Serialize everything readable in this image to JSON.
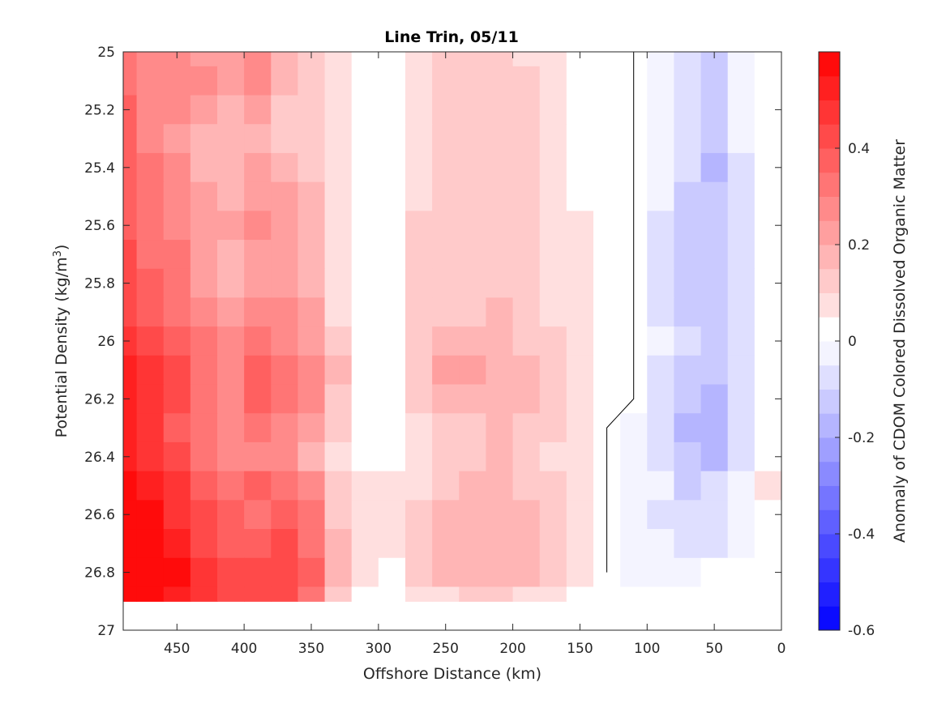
{
  "chart_data": {
    "type": "heatmap",
    "title": "Line Trin, 05/11",
    "xlabel": "Offshore Distance (km)",
    "ylabel": "Potential Density (kg/m³)",
    "ylabel_parts": {
      "main": "Potential Density (kg/m",
      "sup": "3",
      "close": ")"
    },
    "colorbar_label": "Anomaly of CDOM Colored Dissolved Organic Matter",
    "xlim": [
      490,
      0
    ],
    "ylim": [
      25,
      27
    ],
    "x_reversed": true,
    "y_reversed": true,
    "x_ticks": [
      450,
      400,
      350,
      300,
      250,
      200,
      150,
      100,
      50,
      0
    ],
    "x_tick_labels": [
      "450",
      "400",
      "350",
      "300",
      "250",
      "200",
      "150",
      "100",
      "50",
      "0"
    ],
    "y_ticks": [
      25,
      25.2,
      25.4,
      25.6,
      25.8,
      26,
      26.2,
      26.4,
      26.6,
      26.8,
      27
    ],
    "y_tick_labels": [
      "25",
      "25.2",
      "25.4",
      "25.6",
      "25.8",
      "26",
      "26.2",
      "26.4",
      "26.6",
      "26.8",
      "27"
    ],
    "colorbar": {
      "range": [
        -0.6,
        0.6
      ],
      "levels": 24,
      "ticks": [
        -0.6,
        -0.4,
        -0.2,
        0,
        0.2,
        0.4
      ],
      "tick_labels": [
        "-0.6",
        "-0.4",
        "-0.2",
        "0",
        "0.2",
        "0.4"
      ],
      "positive_color": "#ff0000",
      "negative_color": "#0000ff",
      "zero_color": "#ffffff"
    },
    "data_y_extent": [
      25,
      26.9
    ],
    "x": [
      490,
      470,
      450,
      430,
      410,
      390,
      370,
      350,
      330,
      310,
      290,
      270,
      250,
      230,
      210,
      190,
      170,
      150,
      130,
      110,
      90,
      70,
      50,
      30,
      10
    ],
    "y": [
      25.0,
      25.1,
      25.2,
      25.3,
      25.4,
      25.5,
      25.6,
      25.7,
      25.8,
      25.9,
      26.0,
      26.1,
      26.2,
      26.3,
      26.4,
      26.5,
      26.6,
      26.7,
      26.8,
      26.9
    ],
    "z": [
      [
        0.3,
        0.25,
        0.27,
        0.24,
        0.22,
        0.26,
        0.15,
        0.1,
        0.06,
        0.0,
        0.0,
        0.05,
        0.1,
        0.11,
        0.11,
        0.09,
        0.07,
        0.03,
        0.0,
        0.0,
        -0.03,
        -0.08,
        -0.12,
        -0.04,
        0.0
      ],
      [
        0.33,
        0.26,
        0.28,
        0.25,
        0.21,
        0.25,
        0.15,
        0.1,
        0.06,
        0.0,
        0.0,
        0.06,
        0.11,
        0.11,
        0.12,
        0.1,
        0.07,
        0.04,
        0.0,
        0.0,
        -0.04,
        -0.09,
        -0.13,
        -0.05,
        0.0
      ],
      [
        0.35,
        0.27,
        0.26,
        0.22,
        0.18,
        0.22,
        0.14,
        0.1,
        0.06,
        0.0,
        0.0,
        0.07,
        0.12,
        0.12,
        0.12,
        0.1,
        0.08,
        0.04,
        0.0,
        0.0,
        -0.04,
        -0.09,
        -0.14,
        -0.05,
        0.0
      ],
      [
        0.36,
        0.29,
        0.24,
        0.17,
        0.15,
        0.19,
        0.12,
        0.1,
        0.06,
        0.0,
        0.0,
        0.08,
        0.13,
        0.12,
        0.12,
        0.11,
        0.08,
        0.04,
        0.0,
        0.0,
        -0.05,
        -0.1,
        -0.15,
        -0.05,
        0.0
      ],
      [
        0.37,
        0.31,
        0.26,
        0.18,
        0.16,
        0.2,
        0.17,
        0.12,
        0.06,
        0.0,
        0.0,
        0.09,
        0.13,
        0.13,
        0.13,
        0.11,
        0.08,
        0.04,
        0.0,
        0.0,
        -0.05,
        -0.1,
        -0.16,
        -0.06,
        0.0
      ],
      [
        0.37,
        0.32,
        0.28,
        0.22,
        0.19,
        0.24,
        0.22,
        0.15,
        0.07,
        0.0,
        0.0,
        0.09,
        0.14,
        0.13,
        0.14,
        0.11,
        0.08,
        0.04,
        0.0,
        0.0,
        -0.05,
        -0.11,
        -0.15,
        -0.06,
        0.0
      ],
      [
        0.38,
        0.33,
        0.29,
        0.24,
        0.21,
        0.26,
        0.24,
        0.17,
        0.07,
        0.0,
        0.0,
        0.1,
        0.14,
        0.13,
        0.14,
        0.12,
        0.09,
        0.05,
        0.0,
        0.0,
        -0.06,
        -0.11,
        -0.15,
        -0.06,
        0.0
      ],
      [
        0.4,
        0.34,
        0.3,
        0.24,
        0.18,
        0.24,
        0.23,
        0.17,
        0.08,
        0.0,
        0.0,
        0.1,
        0.13,
        0.13,
        0.14,
        0.12,
        0.09,
        0.05,
        0.0,
        0.0,
        -0.06,
        -0.11,
        -0.15,
        -0.07,
        0.0
      ],
      [
        0.42,
        0.36,
        0.32,
        0.24,
        0.16,
        0.24,
        0.23,
        0.18,
        0.08,
        0.0,
        0.0,
        0.1,
        0.13,
        0.13,
        0.14,
        0.13,
        0.09,
        0.05,
        0.0,
        0.0,
        -0.06,
        -0.12,
        -0.14,
        -0.07,
        0.0
      ],
      [
        0.44,
        0.39,
        0.34,
        0.27,
        0.21,
        0.28,
        0.26,
        0.2,
        0.09,
        0.0,
        0.0,
        0.1,
        0.14,
        0.14,
        0.15,
        0.13,
        0.09,
        0.05,
        0.0,
        0.0,
        -0.06,
        -0.11,
        -0.14,
        -0.07,
        0.0
      ],
      [
        0.47,
        0.43,
        0.38,
        0.31,
        0.26,
        0.31,
        0.29,
        0.23,
        0.11,
        0.0,
        0.0,
        0.11,
        0.16,
        0.16,
        0.17,
        0.14,
        0.1,
        0.05,
        0.0,
        0.0,
        -0.05,
        -0.1,
        -0.13,
        -0.06,
        0.0
      ],
      [
        0.51,
        0.47,
        0.42,
        0.34,
        0.29,
        0.36,
        0.32,
        0.27,
        0.16,
        0.0,
        0.0,
        0.14,
        0.23,
        0.2,
        0.19,
        0.15,
        0.11,
        0.06,
        0.0,
        0.0,
        -0.06,
        -0.11,
        -0.14,
        -0.07,
        0.0
      ],
      [
        0.53,
        0.48,
        0.41,
        0.33,
        0.28,
        0.35,
        0.31,
        0.25,
        0.14,
        0.0,
        0.0,
        0.12,
        0.16,
        0.16,
        0.19,
        0.16,
        0.13,
        0.07,
        0.0,
        0.0,
        -0.09,
        -0.14,
        -0.18,
        -0.09,
        0.0
      ],
      [
        0.5,
        0.46,
        0.39,
        0.31,
        0.26,
        0.33,
        0.28,
        0.2,
        0.1,
        0.0,
        0.0,
        0.07,
        0.12,
        0.14,
        0.16,
        0.14,
        0.1,
        0.06,
        0.0,
        -0.03,
        -0.1,
        -0.16,
        -0.2,
        -0.1,
        0.0
      ],
      [
        0.54,
        0.47,
        0.4,
        0.3,
        0.25,
        0.28,
        0.27,
        0.19,
        0.09,
        0.0,
        0.0,
        0.05,
        0.1,
        0.12,
        0.15,
        0.13,
        0.08,
        0.05,
        0.0,
        -0.02,
        -0.08,
        -0.15,
        -0.19,
        -0.07,
        0.0
      ],
      [
        0.58,
        0.53,
        0.47,
        0.38,
        0.33,
        0.36,
        0.34,
        0.27,
        0.12,
        0.06,
        0.05,
        0.08,
        0.13,
        0.17,
        0.16,
        0.14,
        0.1,
        0.06,
        0.0,
        -0.02,
        -0.05,
        -0.11,
        -0.1,
        -0.04,
        0.05
      ],
      [
        0.58,
        0.55,
        0.49,
        0.42,
        0.35,
        0.3,
        0.38,
        0.31,
        0.14,
        0.07,
        0.05,
        0.1,
        0.16,
        0.18,
        0.15,
        0.18,
        0.13,
        0.08,
        0.0,
        -0.03,
        -0.06,
        -0.1,
        -0.09,
        -0.03,
        0.04
      ],
      [
        0.59,
        0.57,
        0.52,
        0.44,
        0.38,
        0.37,
        0.4,
        0.33,
        0.15,
        0.06,
        0.05,
        0.11,
        0.18,
        0.19,
        0.18,
        0.17,
        0.14,
        0.08,
        0.0,
        -0.02,
        -0.05,
        -0.08,
        -0.06,
        -0.01,
        0.0
      ],
      [
        0.6,
        0.58,
        0.55,
        0.47,
        0.42,
        0.44,
        0.43,
        0.35,
        0.15,
        0.05,
        0.04,
        0.11,
        0.17,
        0.18,
        0.17,
        0.16,
        0.12,
        0.06,
        0.0,
        -0.02,
        -0.04,
        -0.04,
        0.04,
        0.04,
        0.0
      ],
      [
        0.6,
        0.57,
        0.53,
        0.45,
        0.4,
        0.4,
        0.41,
        0.33,
        0.11,
        0.0,
        0.0,
        0.05,
        0.09,
        0.1,
        0.1,
        0.09,
        0.07,
        0.03,
        0.0,
        0.0,
        0.0,
        0.0,
        0.04,
        0.0,
        0.0
      ]
    ]
  }
}
